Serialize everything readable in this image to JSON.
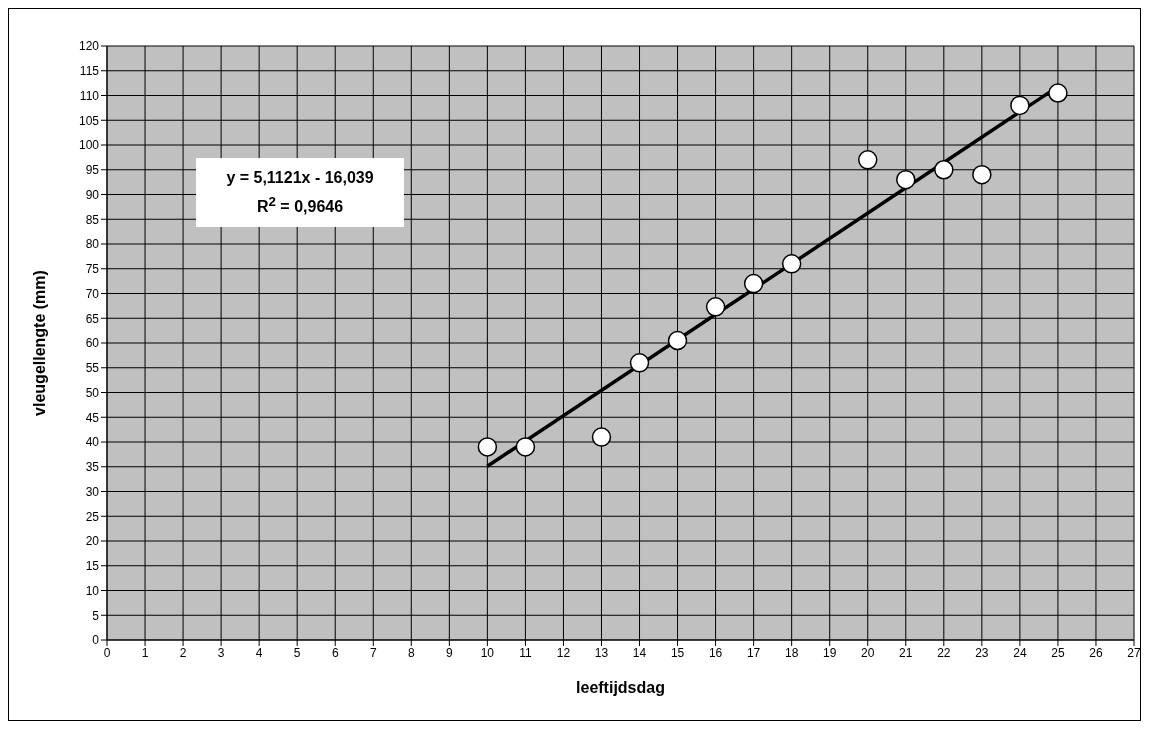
{
  "chart_data": {
    "type": "scatter",
    "xlabel": "leeftijdsdag",
    "ylabel": "vleugellengte (mm)",
    "annotations": [
      "y = 5,1121x - 16,039",
      "R$^{2}$ = 0,9646"
    ],
    "xlim": [
      0,
      27
    ],
    "xticks": [
      0,
      1,
      2,
      3,
      4,
      5,
      6,
      7,
      8,
      9,
      10,
      11,
      12,
      13,
      14,
      15,
      16,
      17,
      18,
      19,
      20,
      21,
      22,
      23,
      24,
      25,
      26,
      27
    ],
    "ylim": [
      0,
      120
    ],
    "yticks": [
      0,
      5,
      10,
      15,
      20,
      25,
      30,
      35,
      40,
      45,
      50,
      55,
      60,
      65,
      70,
      75,
      80,
      85,
      90,
      95,
      100,
      105,
      110,
      115,
      120
    ],
    "grid": true,
    "legend": false,
    "series": [
      {
        "color": "#ffffff",
        "marker": "circle",
        "x": [
          10,
          11,
          13,
          14,
          15,
          16,
          17,
          18,
          20,
          21,
          22,
          23,
          24,
          25
        ],
        "values": [
          39,
          39,
          41,
          56,
          60.5,
          67.3,
          72,
          76,
          97,
          93,
          95,
          94,
          108,
          110.5
        ]
      },
      {
        "type": "line",
        "color": "#000000",
        "marker": "none",
        "line_style": "solid",
        "x": [
          10,
          25
        ],
        "values": [
          35.1,
          111.8
        ]
      }
    ]
  }
}
